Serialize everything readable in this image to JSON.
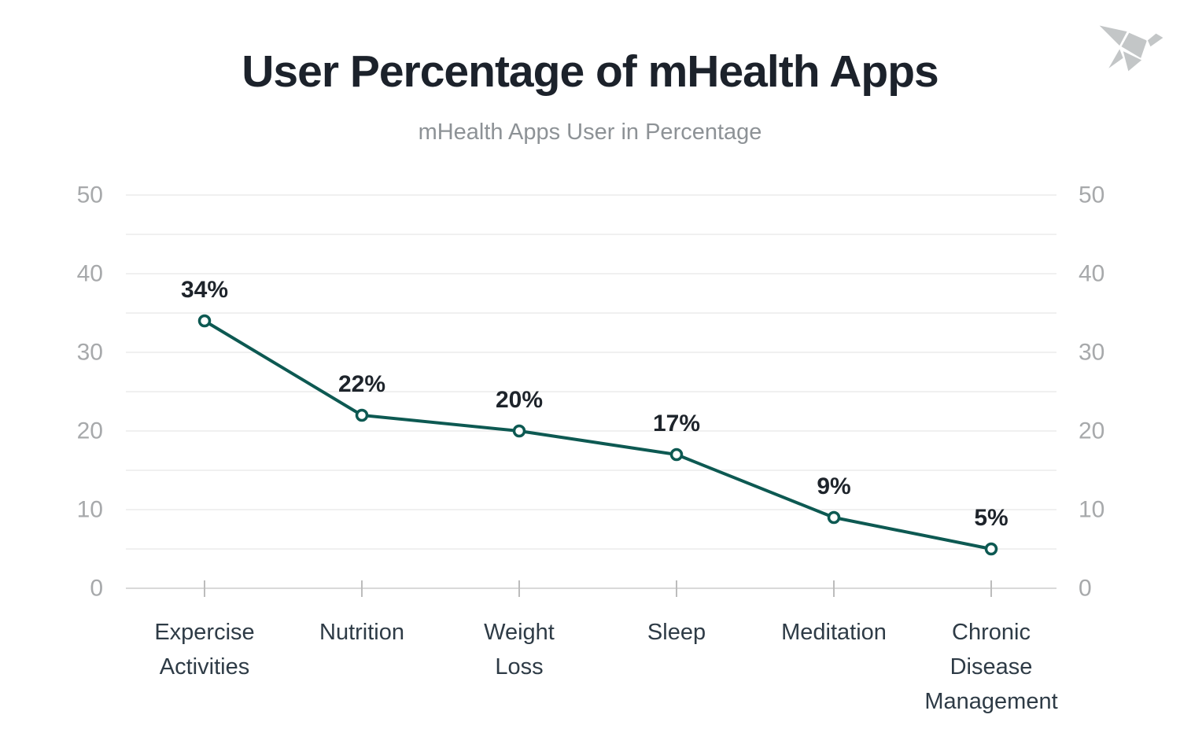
{
  "header": {
    "title": "User Percentage of mHealth Apps",
    "subtitle": "mHealth Apps User in Percentage",
    "logo_icon": "origami-bird-icon"
  },
  "colors": {
    "title": "#1c222b",
    "subtitle": "#8d9296",
    "line": "#0d5952",
    "marker_fill": "#ffffff",
    "gridline": "#ececec",
    "axis_line": "#d9d9d9",
    "tick_mark": "#bcbcbc",
    "y_tick_label": "#a7a9ab",
    "x_category_label": "#2e3b46",
    "data_label": "#1e242b",
    "logo": "#c3c6c7",
    "background": "#ffffff"
  },
  "chart_data": {
    "type": "line",
    "title": "User Percentage of mHealth Apps",
    "subtitle": "mHealth Apps User in Percentage",
    "categories": [
      "Expercise\nActivities",
      "Nutrition",
      "Weight\nLoss",
      "Sleep",
      "Meditation",
      "Chronic\nDisease\nManagement"
    ],
    "values": [
      34,
      22,
      20,
      17,
      9,
      5
    ],
    "data_labels": [
      "34%",
      "22%",
      "20%",
      "17%",
      "9%",
      "5%"
    ],
    "yticks": [
      0,
      10,
      20,
      30,
      40,
      50
    ],
    "ylim": [
      0,
      50
    ],
    "grid_step": 5,
    "grid": "horizontal",
    "legend": "none",
    "y_axis_sides": "both",
    "marker": "open-circle",
    "xlabel": "",
    "ylabel": ""
  }
}
